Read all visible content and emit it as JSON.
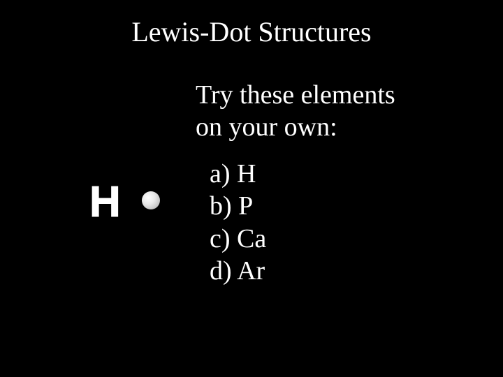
{
  "title": {
    "text": "Lewis-Dot Structures",
    "fontsize": 40,
    "color": "#ffffff"
  },
  "subtitle": {
    "line1": "Try these elements",
    "line2": "on your own:",
    "fontsize": 38,
    "color": "#ffffff"
  },
  "list": {
    "items": [
      {
        "label": "a)",
        "element": "H"
      },
      {
        "label": "b)",
        "element": "P"
      },
      {
        "label": "c)",
        "element": "Ca"
      },
      {
        "label": "d)",
        "element": "Ar"
      }
    ],
    "fontsize": 38,
    "color": "#ffffff"
  },
  "diagram": {
    "symbol": "H",
    "dot_color": "#dcdcdc",
    "symbol_color": "#ffffff"
  },
  "background_color": "#000000"
}
